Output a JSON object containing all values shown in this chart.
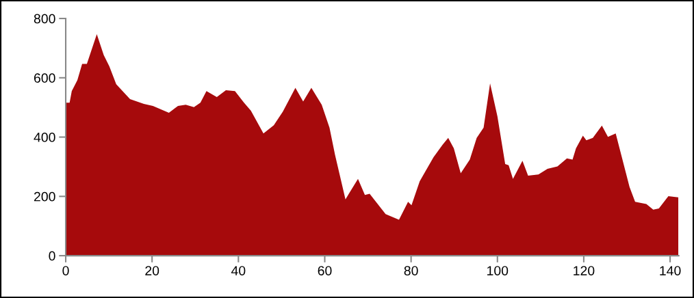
{
  "chart_data": {
    "type": "area",
    "color": "#a60a0c",
    "x": [
      0,
      0.9,
      1.4,
      2.7,
      3.8,
      4.9,
      7.2,
      8.8,
      10.1,
      11.7,
      14.9,
      18.1,
      20.2,
      23.9,
      26,
      27.8,
      29.7,
      31.2,
      32.6,
      35,
      37.1,
      39.2,
      41.3,
      42.9,
      45.8,
      48.2,
      50.3,
      53.2,
      55,
      56.9,
      59.3,
      61.1,
      62.4,
      64.8,
      67.7,
      69.3,
      70.4,
      74.1,
      77.2,
      79.3,
      80.1,
      82,
      85.2,
      87.3,
      88.6,
      89.9,
      91.5,
      93.6,
      95.2,
      96.8,
      98.3,
      100,
      101.8,
      102.6,
      103.6,
      105.8,
      107.1,
      109.5,
      111.6,
      113.9,
      116.1,
      117.4,
      118.2,
      119.8,
      120.6,
      122.1,
      124.2,
      125.6,
      127.4,
      128.7,
      130.6,
      131.9,
      134.5,
      136.1,
      137.4,
      139.6,
      141.9
    ],
    "values": [
      516,
      516,
      555,
      592,
      647,
      647,
      747,
      677,
      639,
      578,
      528,
      512,
      505,
      482,
      505,
      509,
      501,
      516,
      555,
      535,
      558,
      555,
      516,
      489,
      412,
      440,
      486,
      566,
      520,
      566,
      509,
      432,
      339,
      190,
      259,
      205,
      209,
      140,
      121,
      182,
      170,
      251,
      332,
      374,
      397,
      362,
      278,
      324,
      397,
      432,
      581,
      470,
      309,
      305,
      259,
      320,
      270,
      274,
      293,
      301,
      328,
      324,
      362,
      405,
      389,
      397,
      439,
      401,
      412,
      339,
      232,
      182,
      174,
      155,
      159,
      201,
      197
    ],
    "xlim": [
      0,
      142
    ],
    "ylim": [
      0,
      800
    ],
    "xticks": [
      0,
      20,
      40,
      60,
      80,
      100,
      120,
      140
    ],
    "yticks": [
      0,
      200,
      400,
      600,
      800
    ],
    "grid": false
  }
}
